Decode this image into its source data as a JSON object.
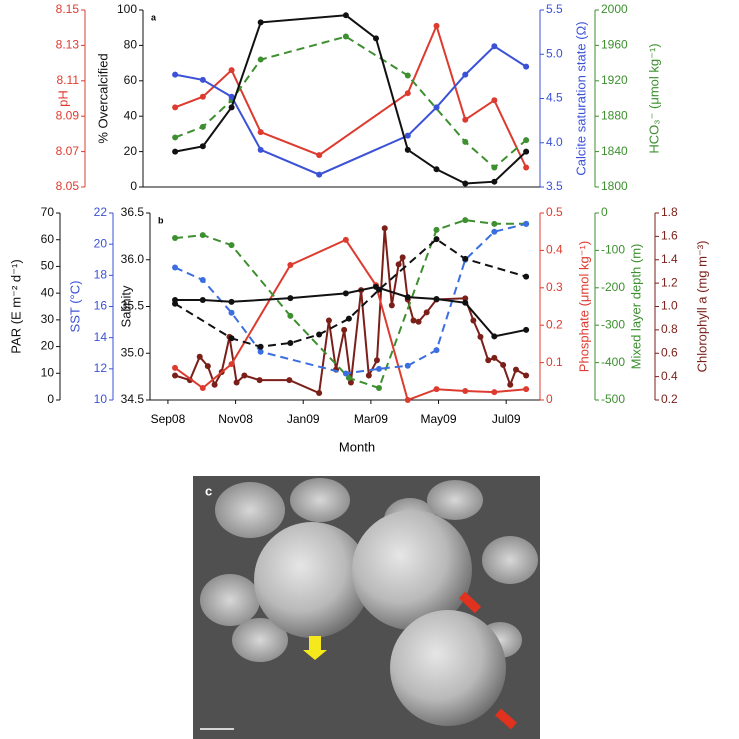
{
  "chart_data": [
    {
      "type": "line",
      "panel_label": "a",
      "xlim": [
        -0.74,
        11
      ],
      "axes": [
        {
          "label": "pH",
          "side": "left",
          "color": "#dd3b2f",
          "lim": [
            8.05,
            8.15
          ],
          "ticks": [
            8.05,
            8.07,
            8.09,
            8.11,
            8.13,
            8.15
          ]
        },
        {
          "label": "% Overcalcified",
          "side": "left",
          "color": "#111111",
          "lim": [
            0,
            100
          ],
          "ticks": [
            0,
            20,
            40,
            60,
            80,
            100
          ]
        },
        {
          "label": "Calcite saturation state (Ω)",
          "side": "right",
          "color": "#3b52d6",
          "lim": [
            3.5,
            5.5
          ],
          "ticks": [
            3.5,
            {
              "value": 4,
              "label": "4.0"
            },
            4.5,
            {
              "value": 5,
              "label": "5.0"
            },
            5.5
          ]
        },
        {
          "label": "HCO₃⁻ (μmol kg⁻¹)",
          "side": "right",
          "color": "#3d8f2f",
          "lim": [
            1800,
            2000
          ],
          "ticks": [
            1800,
            1840,
            1880,
            1920,
            1960,
            2000
          ]
        }
      ],
      "series": [
        {
          "axis": 0,
          "color": "#dd3b2f",
          "dash": false,
          "x": [
            0.21,
            1.03,
            1.88,
            2.74,
            4.47,
            7.09,
            7.94,
            8.79,
            9.65,
            10.59
          ],
          "values": [
            8.095,
            8.101,
            8.116,
            8.081,
            8.068,
            8.103,
            8.141,
            8.088,
            8.099,
            8.061
          ]
        },
        {
          "axis": 3,
          "color": "#3d8f2f",
          "dash": true,
          "x": [
            0.21,
            1.03,
            1.88,
            2.74,
            5.26,
            7.09,
            8.79,
            9.65,
            10.59
          ],
          "values": [
            1856,
            1868,
            1898,
            1944,
            1970,
            1926,
            1851,
            1822,
            1853
          ]
        },
        {
          "axis": 2,
          "color": "#3b52d6",
          "dash": false,
          "x": [
            0.21,
            1.03,
            1.88,
            2.74,
            4.47,
            7.09,
            7.94,
            8.79,
            9.65,
            10.59
          ],
          "values": [
            4.77,
            4.71,
            4.52,
            3.92,
            3.64,
            4.08,
            4.4,
            4.77,
            5.09,
            4.86
          ]
        },
        {
          "axis": 1,
          "color": "#111111",
          "dash": false,
          "x": [
            0.21,
            1.03,
            1.88,
            2.74,
            5.26,
            6.15,
            7.09,
            7.94,
            8.79,
            9.65,
            10.59
          ],
          "values": [
            20,
            23,
            45,
            93,
            97,
            84,
            21,
            10,
            2,
            3,
            20
          ]
        }
      ]
    },
    {
      "type": "line",
      "panel_label": "b",
      "x_label": "Month",
      "xlim": [
        -0.53,
        11
      ],
      "xticks": [
        {
          "value": 0,
          "label": "Sep08"
        },
        {
          "value": 2,
          "label": "Nov08"
        },
        {
          "value": 4,
          "label": "Jan09"
        },
        {
          "value": 6,
          "label": "Mar09"
        },
        {
          "value": 8,
          "label": "May09"
        },
        {
          "value": 10,
          "label": "Jul09"
        }
      ],
      "axes": [
        {
          "label": "PAR (E m⁻² d⁻¹)",
          "side": "left",
          "color": "#111111",
          "lim": [
            0,
            70
          ],
          "ticks": [
            0,
            10,
            20,
            30,
            40,
            50,
            60,
            70
          ]
        },
        {
          "label": "SST (°C)",
          "side": "left",
          "color": "#3b52d6",
          "lim": [
            10,
            22
          ],
          "ticks": [
            10,
            12,
            14,
            16,
            18,
            20,
            22
          ]
        },
        {
          "label": "Salinity",
          "side": "left",
          "color": "#111111",
          "lim": [
            34.5,
            36.5
          ],
          "ticks": [
            34.5,
            {
              "value": 35,
              "label": "35.0"
            },
            35.5,
            {
              "value": 36,
              "label": "36.0"
            },
            36.5
          ]
        },
        {
          "label": "Phosphate (μmol kg⁻¹)",
          "side": "right",
          "color": "#dd3b2f",
          "lim": [
            0,
            0.5
          ],
          "ticks": [
            0,
            0.1,
            0.2,
            0.3,
            0.4,
            0.5
          ]
        },
        {
          "label": "Mixed layer depth (m)",
          "side": "right",
          "color": "#3d8f2f",
          "lim": [
            -500,
            0
          ],
          "ticks": [
            -500,
            -400,
            -300,
            -200,
            -100,
            0
          ]
        },
        {
          "label": "Chlorophyll a (mg m⁻³)",
          "side": "right",
          "color": "#7b1f19",
          "lim": [
            0.2,
            1.8
          ],
          "ticks": [
            0.2,
            0.4,
            0.6,
            0.8,
            {
              "value": 1,
              "label": "1.0"
            },
            1.2,
            1.4,
            1.6,
            1.8
          ]
        }
      ],
      "series": [
        {
          "axis": 5,
          "color": "#7b1f19",
          "dash": false,
          "x": [
            0.21,
            0.65,
            0.94,
            1.18,
            1.38,
            1.59,
            1.82,
            2.03,
            2.26,
            2.71,
            3.59,
            4.47,
            4.76,
            4.97,
            5.21,
            5.41,
            5.71,
            5.94,
            6.18,
            6.41,
            6.62,
            6.82,
            6.94,
            7.09,
            7.26,
            7.41,
            7.65,
            7.94,
            8.79,
            9.03,
            9.24,
            9.47,
            9.65,
            9.91,
            10.12,
            10.29,
            10.59
          ],
          "values": [
            0.41,
            0.37,
            0.57,
            0.49,
            0.33,
            0.44,
            0.74,
            0.35,
            0.41,
            0.37,
            0.37,
            0.26,
            0.88,
            0.46,
            0.8,
            0.35,
            1.14,
            0.41,
            0.54,
            1.67,
            1.01,
            1.36,
            1.42,
            1.06,
            0.88,
            0.87,
            0.95,
            1.06,
            1.07,
            0.88,
            0.74,
            0.54,
            0.56,
            0.5,
            0.33,
            0.46,
            0.41
          ]
        },
        {
          "axis": 3,
          "color": "#dd3b2f",
          "dash": false,
          "x": [
            0.21,
            1.03,
            1.88,
            3.62,
            5.26,
            6.15,
            7.09,
            7.94,
            8.79,
            9.65,
            10.59
          ],
          "values": [
            0.086,
            0.032,
            0.096,
            0.361,
            0.428,
            0.307,
            0,
            0.029,
            0.024,
            0.021,
            0.029
          ]
        },
        {
          "axis": 4,
          "color": "#3d8f2f",
          "dash": true,
          "x": [
            0.21,
            1.03,
            1.88,
            3.62,
            5.35,
            6.24,
            7.94,
            8.79,
            9.65,
            10.59
          ],
          "values": [
            -67,
            -59,
            -86,
            -275,
            -441,
            -468,
            -45,
            -19,
            -29,
            -29
          ]
        },
        {
          "axis": 1,
          "color": "#3b6fe0",
          "dash": true,
          "x": [
            0.21,
            1.03,
            1.88,
            2.74,
            5.26,
            6.24,
            7.09,
            7.94,
            8.79,
            9.65,
            10.59
          ],
          "values": [
            18.5,
            17.7,
            15.6,
            13.1,
            11.7,
            12,
            12.2,
            13.2,
            19,
            20.8,
            21.3
          ]
        },
        {
          "axis": 2,
          "color": "#111111",
          "dash": true,
          "x": [
            0.21,
            1.88,
            2.74,
            3.62,
            4.47,
            5.35,
            6.24,
            7.94,
            8.79,
            10.59
          ],
          "values": [
            35.53,
            35.16,
            35.07,
            35.11,
            35.2,
            35.37,
            35.68,
            36.22,
            36.01,
            35.82
          ]
        },
        {
          "axis": 2,
          "color": "#111111",
          "dash": false,
          "x": [
            0.21,
            1.03,
            1.88,
            3.62,
            5.26,
            6.15,
            7.09,
            7.94,
            8.79,
            9.65,
            10.59
          ],
          "values": [
            35.57,
            35.57,
            35.55,
            35.59,
            35.64,
            35.71,
            35.6,
            35.58,
            35.54,
            35.18,
            35.25
          ]
        }
      ]
    }
  ],
  "micrograph": {
    "panel_label": "c"
  }
}
